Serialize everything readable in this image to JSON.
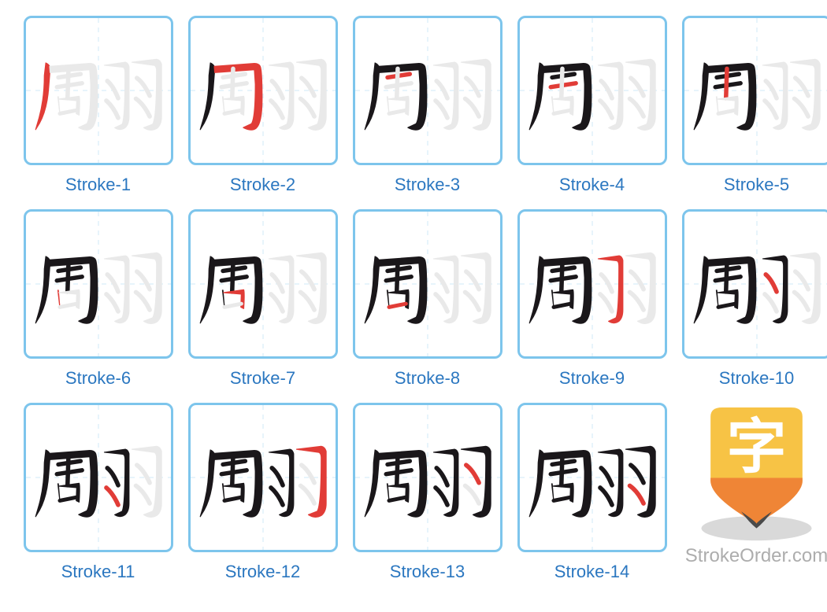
{
  "brand": "StrokeOrder.com",
  "colors": {
    "tile_border": "#7dc5ec",
    "guide_line": "#cfe9f7",
    "label": "#2b77c0",
    "brand": "#adadad",
    "ghost": "#e9e9e9",
    "ink": "#1a171a",
    "highlight": "#e13c37",
    "logo_top": "#f7c345",
    "logo_mid": "#ef8536",
    "logo_tip": "#4a4a4a",
    "logo_char": "#ffffff",
    "logo_shadow": "#d9d9d9"
  },
  "typography": {
    "label_fontsize": 22,
    "brand_fontsize": 24
  },
  "layout": {
    "tile": 190,
    "cell": 203,
    "cols": 5
  },
  "strokes": {
    "zhou": [
      "M37 30 Q42 32 45 37 L46 42 L43 80 Q40 126 24 155 L16 168 L23 144 Q34 104 34 56 Z",
      "M45 37 L128 31 Q137 31 140 37 Q144 45 144 105 Q144 154 132 165 Q122 173 105 164 L122 156 Q130 144 130 74 L128 44 L46 50 Z",
      "M63 60 L109 53",
      "M60 80 L112 72",
      "M84 42 L82 103",
      "M63 100 L66 135 L62 100 Z",
      "M64 105 L106 99 Q108 104 106 138 L100 135 L101 108 Z",
      "M66 135 L101 128"
    ],
    "yu_left": [
      "M12 36 L55 30 Q60 31 62 39 L62 140 Q62 156 54 163 Q44 170 33 163 L48 156 Q54 146 54 52 Q54 40 49 40 Z",
      "M18 68 Q30 78 40 103",
      "M16 108 Q30 120 40 143"
    ],
    "yu_right": [
      "M68 30 L118 24 Q125 25 128 34 L128 140 Q128 156 119 164 Q106 172 92 163 L110 156 Q118 143 118 48 Q118 36 111 36 Z",
      "M78 62 Q92 72 104 98",
      "M76 104 Q92 115 104 140"
    ]
  },
  "labels": [
    "Stroke-1",
    "Stroke-2",
    "Stroke-3",
    "Stroke-4",
    "Stroke-5",
    "Stroke-6",
    "Stroke-7",
    "Stroke-8",
    "Stroke-9",
    "Stroke-10",
    "Stroke-11",
    "Stroke-12",
    "Stroke-13",
    "Stroke-14"
  ],
  "logo_char": "字"
}
